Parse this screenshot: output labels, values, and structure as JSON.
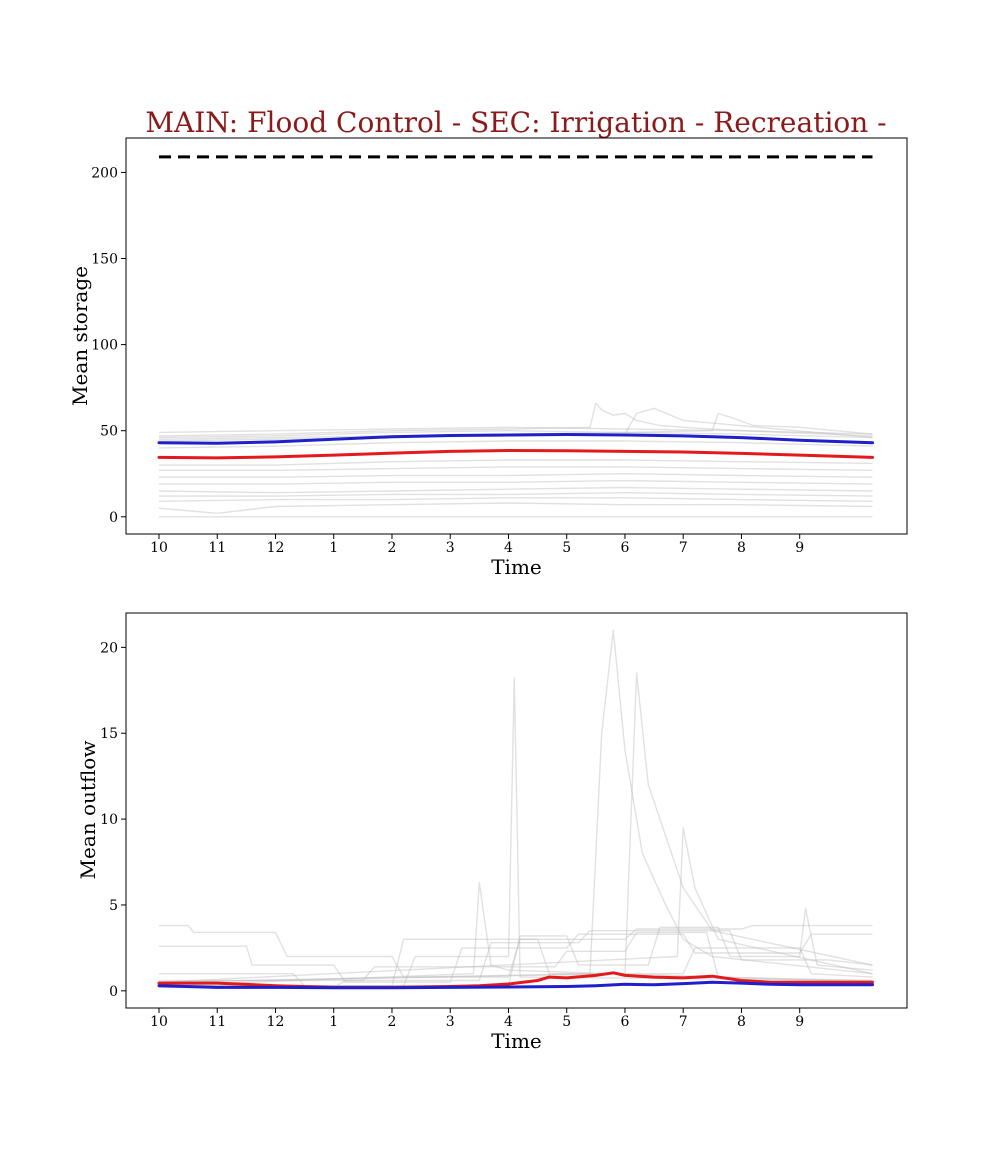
{
  "colors": {
    "title": "#8b1a1a",
    "mean_red": "#e31a1c",
    "mean_blue": "#1f1fcc",
    "ensemble": "#bdbdbd",
    "capacity": "#000000"
  },
  "chart_data": [
    {
      "type": "line",
      "title": "MAIN: Flood Control - SEC: Irrigation - Recreation -",
      "xlabel": "Time",
      "ylabel": "Mean storage",
      "xtick_labels": [
        "10",
        "11",
        "12",
        "1",
        "2",
        "3",
        "4",
        "5",
        "6",
        "7",
        "8",
        "9"
      ],
      "xlim": [
        0,
        12.25
      ],
      "ylim": [
        -10,
        220
      ],
      "yticks": [
        0,
        50,
        100,
        150,
        200
      ],
      "grid": false,
      "series": [
        {
          "role": "capacity",
          "style": "dashed",
          "color": "#000000",
          "x": [
            0,
            12.25
          ],
          "y": [
            209,
            209
          ]
        },
        {
          "role": "mean",
          "color": "#e31a1c",
          "x": [
            0,
            1,
            2,
            3,
            4,
            5,
            6,
            7,
            8,
            9,
            10,
            11,
            12.25
          ],
          "y": [
            34.5,
            34.2,
            34.8,
            35.8,
            37.0,
            38.0,
            38.5,
            38.3,
            38.0,
            37.6,
            36.8,
            35.8,
            34.5
          ]
        },
        {
          "role": "mean",
          "color": "#1f1fcc",
          "x": [
            0,
            1,
            2,
            3,
            4,
            5,
            6,
            7,
            8,
            9,
            10,
            11,
            12.25
          ],
          "y": [
            43.0,
            42.7,
            43.5,
            45.0,
            46.5,
            47.2,
            47.5,
            47.8,
            47.5,
            47.0,
            46.0,
            44.5,
            43.0
          ]
        },
        {
          "role": "ensemble",
          "x": [
            0,
            2,
            4,
            6,
            8,
            10,
            12.25
          ],
          "y": [
            49,
            50,
            51,
            52,
            51,
            50,
            48
          ]
        },
        {
          "role": "ensemble",
          "x": [
            0,
            2,
            4,
            6,
            8,
            10,
            12.25
          ],
          "y": [
            46,
            47,
            49,
            50,
            49,
            48,
            46
          ]
        },
        {
          "role": "ensemble",
          "x": [
            0,
            2,
            4,
            6,
            8,
            10,
            12.25
          ],
          "y": [
            40,
            41,
            43,
            44,
            44,
            43,
            41
          ]
        },
        {
          "role": "ensemble",
          "x": [
            0,
            2,
            4,
            6,
            8,
            10,
            12.25
          ],
          "y": [
            30,
            30,
            32,
            33,
            33,
            32,
            31
          ]
        },
        {
          "role": "ensemble",
          "x": [
            0,
            2,
            4,
            6,
            8,
            10,
            12.25
          ],
          "y": [
            27,
            27,
            28,
            29,
            29,
            28,
            27
          ]
        },
        {
          "role": "ensemble",
          "x": [
            0,
            2,
            4,
            6,
            8,
            10,
            12.25
          ],
          "y": [
            23,
            23,
            24,
            24,
            25,
            24,
            23
          ]
        },
        {
          "role": "ensemble",
          "x": [
            0,
            2,
            4,
            6,
            8,
            10,
            12.25
          ],
          "y": [
            19,
            19,
            20,
            20,
            21,
            20,
            19
          ]
        },
        {
          "role": "ensemble",
          "x": [
            0,
            2,
            4,
            6,
            8,
            10,
            12.25
          ],
          "y": [
            15,
            14,
            15,
            16,
            17,
            16,
            15
          ]
        },
        {
          "role": "ensemble",
          "x": [
            0,
            2,
            4,
            6,
            8,
            10,
            12.25
          ],
          "y": [
            12,
            12,
            13,
            13,
            14,
            13,
            12
          ]
        },
        {
          "role": "ensemble",
          "x": [
            0,
            2,
            4,
            6,
            8,
            10,
            12.25
          ],
          "y": [
            9,
            10,
            10,
            11,
            11,
            10,
            9
          ]
        },
        {
          "role": "ensemble",
          "x": [
            0,
            1,
            2,
            4,
            6,
            8,
            10,
            12.25
          ],
          "y": [
            5,
            2,
            6,
            7,
            8,
            7,
            7,
            6
          ]
        },
        {
          "role": "ensemble",
          "x": [
            0,
            12.25
          ],
          "y": [
            0,
            0
          ]
        },
        {
          "role": "ensemble",
          "x": [
            0,
            2,
            4,
            6,
            7.4,
            7.5,
            7.6,
            7.8,
            8.0,
            8.2,
            8.6,
            9,
            10,
            12.25
          ],
          "y": [
            47,
            48,
            50,
            51,
            52,
            66,
            62,
            59,
            60,
            56,
            53,
            52,
            50,
            47
          ]
        },
        {
          "role": "ensemble",
          "x": [
            0,
            4,
            8,
            9.5,
            9.6,
            9.8,
            10.2,
            11,
            12.25
          ],
          "y": [
            45,
            47,
            49,
            50,
            60,
            58,
            53,
            52,
            48
          ]
        },
        {
          "role": "ensemble",
          "x": [
            0,
            4,
            8,
            8.2,
            8.5,
            9,
            12.25
          ],
          "y": [
            44,
            46,
            48,
            60,
            63,
            56,
            46
          ]
        }
      ]
    },
    {
      "type": "line",
      "xlabel": "Time",
      "ylabel": "Mean outflow",
      "xtick_labels": [
        "10",
        "11",
        "12",
        "1",
        "2",
        "3",
        "4",
        "5",
        "6",
        "7",
        "8",
        "9"
      ],
      "xlim": [
        0,
        12.25
      ],
      "ylim": [
        -1,
        22
      ],
      "yticks": [
        0,
        5,
        10,
        15,
        20
      ],
      "grid": false,
      "series": [
        {
          "role": "mean",
          "color": "#e31a1c",
          "x": [
            0,
            1,
            2,
            3,
            4,
            5,
            5.5,
            6,
            6.5,
            6.7,
            7,
            7.5,
            7.8,
            8,
            8.5,
            9,
            9.5,
            10,
            10.5,
            11,
            12.25
          ],
          "y": [
            0.45,
            0.45,
            0.3,
            0.2,
            0.2,
            0.25,
            0.3,
            0.4,
            0.6,
            0.8,
            0.75,
            0.9,
            1.05,
            0.9,
            0.8,
            0.75,
            0.85,
            0.6,
            0.5,
            0.5,
            0.5
          ]
        },
        {
          "role": "mean",
          "color": "#1f1fcc",
          "x": [
            0,
            1,
            2,
            3,
            4,
            5,
            6,
            7,
            7.5,
            8,
            8.5,
            9,
            9.5,
            10,
            10.5,
            11,
            12.25
          ],
          "y": [
            0.3,
            0.2,
            0.2,
            0.18,
            0.18,
            0.2,
            0.22,
            0.25,
            0.3,
            0.38,
            0.35,
            0.42,
            0.5,
            0.45,
            0.38,
            0.35,
            0.35
          ]
        },
        {
          "role": "ensemble",
          "x": [
            0,
            4.2,
            4.4,
            6.0,
            6.1,
            6.2,
            12.25
          ],
          "y": [
            0.3,
            0.3,
            2.0,
            2.0,
            18.2,
            0.8,
            0.6
          ]
        },
        {
          "role": "ensemble",
          "x": [
            0,
            7.4,
            7.6,
            7.8,
            8.0,
            8.3,
            8.7,
            9.0,
            9.5,
            12.25
          ],
          "y": [
            0.5,
            1.0,
            15.0,
            21.0,
            14.0,
            8.0,
            5.0,
            3.0,
            2.0,
            1.0
          ]
        },
        {
          "role": "ensemble",
          "x": [
            0,
            8.0,
            8.2,
            8.4,
            8.6,
            9.0,
            9.5,
            12.25
          ],
          "y": [
            0.5,
            1.0,
            18.5,
            12.0,
            10.0,
            6.0,
            3.5,
            1.5
          ]
        },
        {
          "role": "ensemble",
          "x": [
            0,
            8.9,
            9.0,
            9.2,
            9.6,
            12.25
          ],
          "y": [
            0.5,
            2.0,
            9.5,
            6.0,
            3.0,
            1.0
          ]
        },
        {
          "role": "ensemble",
          "x": [
            0,
            5.4,
            5.5,
            5.7,
            6.0,
            12.25
          ],
          "y": [
            0.3,
            1.0,
            6.3,
            1.5,
            1.2,
            0.5
          ]
        },
        {
          "role": "ensemble",
          "x": [
            0,
            0.5,
            0.6,
            2.0,
            2.2,
            4.0,
            4.2,
            6.0,
            6.2,
            8.0,
            8.2,
            10.0,
            10.2,
            12.25
          ],
          "y": [
            3.8,
            3.8,
            3.4,
            3.4,
            2.0,
            2.0,
            0.8,
            0.8,
            3.0,
            3.0,
            3.6,
            3.6,
            3.8,
            3.8
          ]
        },
        {
          "role": "ensemble",
          "x": [
            0,
            1.5,
            1.6,
            3.0,
            3.2,
            5.0,
            5.2,
            7.0,
            7.2,
            9.0,
            9.2,
            11.0,
            11.2,
            12.25
          ],
          "y": [
            2.6,
            2.6,
            1.5,
            1.5,
            0.5,
            0.5,
            2.5,
            2.5,
            3.3,
            3.3,
            2.2,
            2.2,
            3.3,
            3.3
          ]
        },
        {
          "role": "ensemble",
          "x": [
            0,
            2.3,
            2.5,
            4.0,
            4.2,
            6.5,
            6.7,
            9.0,
            9.2,
            11.0,
            11.2,
            12.25
          ],
          "y": [
            1.0,
            1.0,
            0.3,
            0.3,
            3.0,
            3.0,
            1.0,
            1.0,
            2.5,
            2.5,
            1.0,
            0.8
          ]
        },
        {
          "role": "ensemble",
          "x": [
            0,
            3.0,
            3.2,
            5.5,
            5.7,
            7.2,
            7.4,
            9.8,
            10.0,
            11.5,
            12.25
          ],
          "y": [
            0.2,
            0.2,
            0.6,
            0.6,
            2.8,
            2.8,
            3.5,
            3.5,
            1.8,
            1.8,
            1.5
          ]
        },
        {
          "role": "ensemble",
          "x": [
            0,
            6.0,
            6.2,
            7.0,
            7.2,
            8.4,
            8.6,
            9.6,
            9.8,
            11.0,
            11.1,
            11.3,
            12.25
          ],
          "y": [
            0.3,
            0.3,
            3.2,
            3.2,
            1.5,
            1.5,
            3.7,
            3.7,
            2.0,
            2.0,
            4.8,
            1.5,
            1.2
          ]
        },
        {
          "role": "ensemble",
          "x": [
            0,
            3.5,
            3.7,
            6.8,
            7.0,
            8.0,
            8.2,
            9.4,
            9.6,
            12.25
          ],
          "y": [
            0.6,
            0.6,
            1.4,
            1.4,
            2.3,
            2.3,
            3.4,
            3.4,
            0.8,
            0.6
          ]
        }
      ]
    }
  ]
}
